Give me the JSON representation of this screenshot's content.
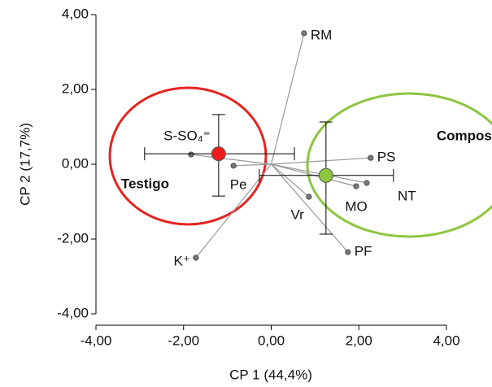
{
  "chart_data": {
    "type": "biplot",
    "xlabel": "CP 1 (44,4%)",
    "ylabel": "CP 2 (17,7%)",
    "xlim": [
      -4,
      4
    ],
    "ylim": [
      -4,
      4
    ],
    "xticks": [
      {
        "value": -4,
        "label": "-4,00"
      },
      {
        "value": -2,
        "label": "-2,00"
      },
      {
        "value": 0,
        "label": "0,00"
      },
      {
        "value": 2,
        "label": "2,00"
      },
      {
        "value": 4,
        "label": "4,00"
      }
    ],
    "yticks": [
      {
        "value": -4,
        "label": "-4,00"
      },
      {
        "value": -2,
        "label": "-2,00"
      },
      {
        "value": 0,
        "label": "0,00"
      },
      {
        "value": 2,
        "label": "2,00"
      },
      {
        "value": 4,
        "label": "4,00"
      }
    ],
    "loadings": {
      "labels": [
        "RM",
        "PS",
        "NT",
        "MO",
        "PF",
        "Vr",
        "Pe",
        "S-SO₄⁼",
        "K⁺"
      ],
      "x": [
        0.75,
        2.27,
        2.18,
        1.94,
        1.75,
        0.86,
        -0.86,
        -1.83,
        -1.72
      ],
      "y": [
        3.5,
        0.17,
        -0.5,
        -0.59,
        -2.35,
        -0.87,
        -0.04,
        0.26,
        -2.5
      ],
      "color": "#777777"
    },
    "groups": [
      {
        "name": "Testigo",
        "color": "#ee1c1c",
        "ellipse_color": "#e52421",
        "x": -1.2,
        "y": 0.28,
        "xrange": [
          -2.89,
          0.53
        ],
        "yrange": [
          -0.85,
          1.33
        ]
      },
      {
        "name": "Compost",
        "color": "#8cc63f",
        "ellipse_color": "#8dc63f",
        "x": 1.25,
        "y": -0.3,
        "xrange": [
          -0.27,
          2.79
        ],
        "yrange": [
          -1.87,
          1.13
        ]
      }
    ]
  }
}
